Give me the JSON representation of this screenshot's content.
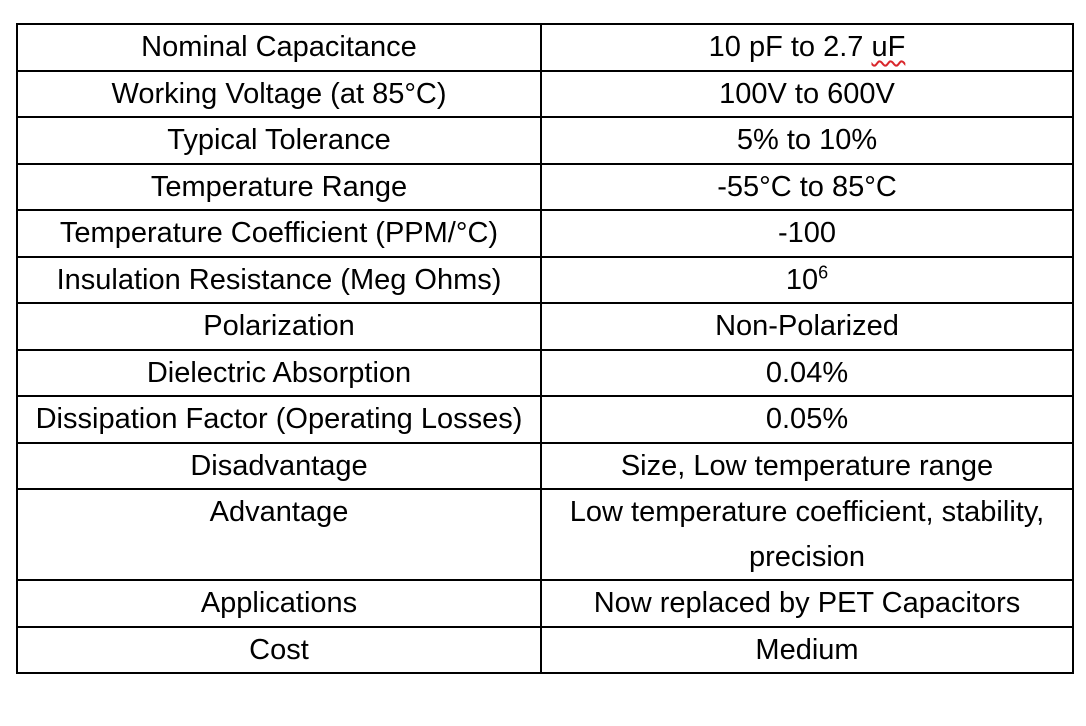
{
  "table": {
    "rows": [
      {
        "property": "Nominal Capacitance",
        "value_main": "10 pF to 2.7 ",
        "value_flagged": "uF"
      },
      {
        "property": "Working Voltage (at 85°C)",
        "value": "100V to 600V"
      },
      {
        "property": "Typical Tolerance",
        "value": "5% to 10%"
      },
      {
        "property": "Temperature Range",
        "value": "-55°C to 85°C"
      },
      {
        "property": "Temperature Coefficient (PPM/°C)",
        "value": "-100"
      },
      {
        "property": "Insulation Resistance (Meg Ohms)",
        "value_base": "10",
        "value_exp": "6"
      },
      {
        "property": "Polarization",
        "value": "Non-Polarized"
      },
      {
        "property": "Dielectric Absorption",
        "value": "0.04%"
      },
      {
        "property": "Dissipation Factor (Operating Losses)",
        "value": "0.05%"
      },
      {
        "property": "Disadvantage",
        "value": "Size, Low temperature range"
      },
      {
        "property": "Advantage",
        "value": "Low temperature coefficient, stability, precision"
      },
      {
        "property": "Applications",
        "value": "Now replaced by PET Capacitors"
      },
      {
        "property": "Cost",
        "value": "Medium"
      }
    ]
  },
  "colors": {
    "border": "#000000",
    "text": "#000000",
    "spellcheck_underline": "#d9262b"
  }
}
